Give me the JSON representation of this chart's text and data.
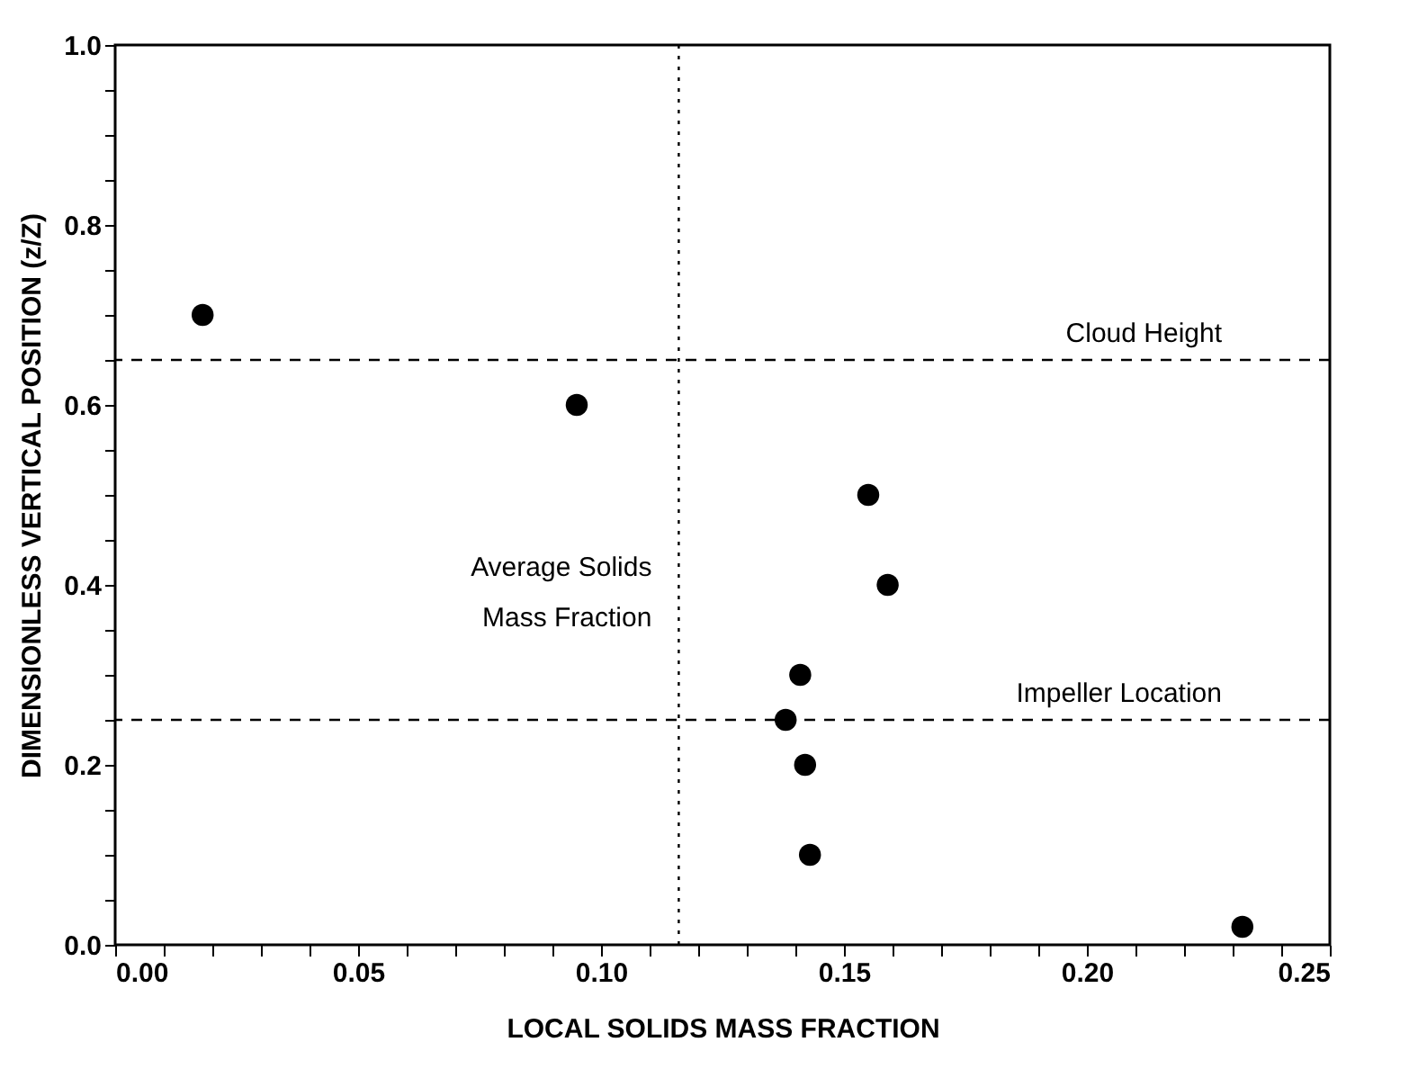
{
  "chart_data": {
    "type": "scatter",
    "xlabel": "LOCAL SOLIDS MASS FRACTION",
    "ylabel": "DIMENSIONLESS VERTICAL POSITION (z/Z)",
    "x": [
      0.018,
      0.095,
      0.155,
      0.159,
      0.141,
      0.138,
      0.142,
      0.143,
      0.232
    ],
    "series": [
      {
        "color": "#000000",
        "values": [
          0.7,
          0.6,
          0.5,
          0.4,
          0.3,
          0.25,
          0.2,
          0.1,
          0.02
        ]
      }
    ],
    "marker": "circle",
    "grid": false,
    "xlim": [
      0,
      0.25
    ],
    "ylim": [
      0,
      1
    ],
    "xticks": [
      {
        "value": 0,
        "label": "0.00"
      },
      {
        "value": 0.01,
        "label": null
      },
      {
        "value": 0.02,
        "label": null
      },
      {
        "value": 0.03,
        "label": null
      },
      {
        "value": 0.04,
        "label": null
      },
      {
        "value": 0.05,
        "label": "0.05"
      },
      {
        "value": 0.06,
        "label": null
      },
      {
        "value": 0.07,
        "label": null
      },
      {
        "value": 0.08,
        "label": null
      },
      {
        "value": 0.09,
        "label": null
      },
      {
        "value": 0.1,
        "label": "0.10"
      },
      {
        "value": 0.11,
        "label": null
      },
      {
        "value": 0.12,
        "label": null
      },
      {
        "value": 0.13,
        "label": null
      },
      {
        "value": 0.14,
        "label": null
      },
      {
        "value": 0.15,
        "label": "0.15"
      },
      {
        "value": 0.16,
        "label": null
      },
      {
        "value": 0.17,
        "label": null
      },
      {
        "value": 0.18,
        "label": null
      },
      {
        "value": 0.19,
        "label": null
      },
      {
        "value": 0.2,
        "label": "0.20"
      },
      {
        "value": 0.21,
        "label": null
      },
      {
        "value": 0.22,
        "label": null
      },
      {
        "value": 0.23,
        "label": null
      },
      {
        "value": 0.24,
        "label": null
      },
      {
        "value": 0.25,
        "label": "0.25"
      }
    ],
    "yticks": [
      {
        "value": 0,
        "label": "0.0"
      },
      {
        "value": 0.05,
        "label": null
      },
      {
        "value": 0.1,
        "label": null
      },
      {
        "value": 0.15,
        "label": null
      },
      {
        "value": 0.2,
        "label": "0.2"
      },
      {
        "value": 0.25,
        "label": null
      },
      {
        "value": 0.3,
        "label": null
      },
      {
        "value": 0.35,
        "label": null
      },
      {
        "value": 0.4,
        "label": "0.4"
      },
      {
        "value": 0.45,
        "label": null
      },
      {
        "value": 0.5,
        "label": null
      },
      {
        "value": 0.55,
        "label": null
      },
      {
        "value": 0.6,
        "label": "0.6"
      },
      {
        "value": 0.65,
        "label": null
      },
      {
        "value": 0.7,
        "label": null
      },
      {
        "value": 0.75,
        "label": null
      },
      {
        "value": 0.8,
        "label": "0.8"
      },
      {
        "value": 0.85,
        "label": null
      },
      {
        "value": 0.9,
        "label": null
      },
      {
        "value": 0.95,
        "label": null
      },
      {
        "value": 1,
        "label": "1.0"
      }
    ],
    "ref_lines": [
      {
        "axis": "y",
        "value": 0.65,
        "label": "Cloud Height",
        "line_style": "dashed"
      },
      {
        "axis": "y",
        "value": 0.25,
        "label": "Impeller Location",
        "line_style": "dashed"
      },
      {
        "axis": "x",
        "value": 0.116,
        "label": "Average Solids Mass Fraction",
        "line_style": "dotted"
      }
    ]
  }
}
